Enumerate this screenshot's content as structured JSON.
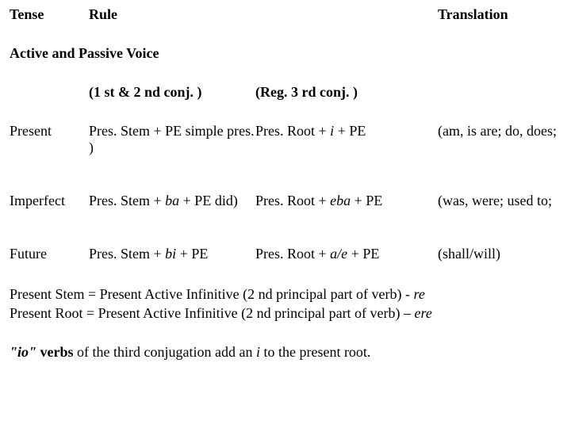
{
  "headers": {
    "tense": "Tense",
    "rule": "Rule",
    "translation": "Translation"
  },
  "section_title": "Active and Passive Voice",
  "subheaders": {
    "col_a": "(1 st & 2 nd conj. )",
    "col_b": "(Reg. 3 rd conj. )"
  },
  "rows": [
    {
      "tense": "Present",
      "rule_a_prefix": "Pres. Stem + PE",
      "rule_a_suffix": " simple pres. )",
      "rule_b_prefix": "Pres. Root + ",
      "rule_b_italic": "i",
      "rule_b_suffix": " + PE",
      "translation_pad": " ",
      "translation": "(am, is are; do, does;"
    },
    {
      "tense": "Imperfect",
      "rule_a_prefix": "Pres. Stem + ",
      "rule_a_italic": "ba",
      "rule_a_mid": " + PE",
      "rule_a_suffix": " did)",
      "rule_b_prefix": "Pres. Root + ",
      "rule_b_italic": "eba",
      "rule_b_suffix": " + PE",
      "translation_pad": " ",
      "translation": "(was, were; used to;"
    },
    {
      "tense": "Future",
      "rule_a_prefix": "Pres. Stem + ",
      "rule_a_italic": "bi",
      "rule_a_mid": " + PE",
      "rule_a_suffix": "",
      "rule_b_prefix": "Pres. Root + ",
      "rule_b_italic": "a/e",
      "rule_b_suffix": " + PE",
      "translation_pad": "  ",
      "translation": "(shall/will)"
    }
  ],
  "notes": {
    "line1_prefix": "Present Stem = Present Active Infinitive (2 nd principal part of verb) - ",
    "line1_italic": "re",
    "line2_prefix": "Present Root = Present Active Infinitive (2 nd principal part of verb) – ",
    "line2_italic": "ere",
    "line3_italic": "\"io\"",
    "line3_prefix": " verbs",
    "line3_mid": " of the third conjugation add an ",
    "line3_italic2": "i",
    "line3_suffix": " to the present root."
  },
  "colors": {
    "background": "#ffffff",
    "text": "#000000"
  },
  "typography": {
    "font_family": "Times New Roman",
    "font_size_pt": 14
  }
}
